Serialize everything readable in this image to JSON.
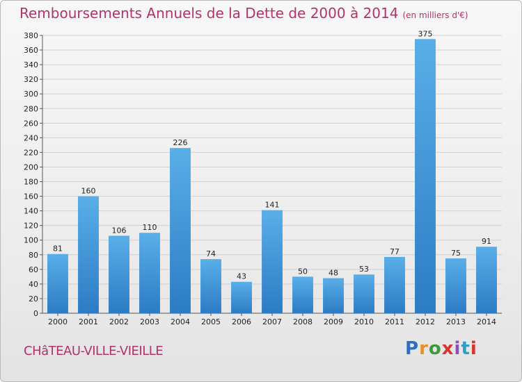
{
  "title": "Remboursements Annuels de la Dette de 2000 à 2014",
  "unit": "(en milliers d'€)",
  "commune": "CHâTEAU-VILLE-VIEILLE",
  "logo_text": "Proxiti",
  "colors": {
    "accent": "#b0336a",
    "bar_top": "#5aaee8",
    "bar_bottom": "#2c7cc4"
  },
  "chart_data": {
    "type": "bar",
    "title": "Remboursements Annuels de la Dette de 2000 à 2014",
    "subtitle": "(en milliers d'€)",
    "xlabel": "",
    "ylabel": "",
    "categories": [
      "2000",
      "2001",
      "2002",
      "2003",
      "2004",
      "2005",
      "2006",
      "2007",
      "2008",
      "2009",
      "2010",
      "2011",
      "2012",
      "2013",
      "2014"
    ],
    "values": [
      81,
      160,
      106,
      110,
      226,
      74,
      43,
      141,
      50,
      48,
      53,
      77,
      375,
      75,
      91
    ],
    "ylim": [
      0,
      380
    ],
    "ytick_step": 20,
    "grid": "horizontal",
    "data_labels": true
  }
}
